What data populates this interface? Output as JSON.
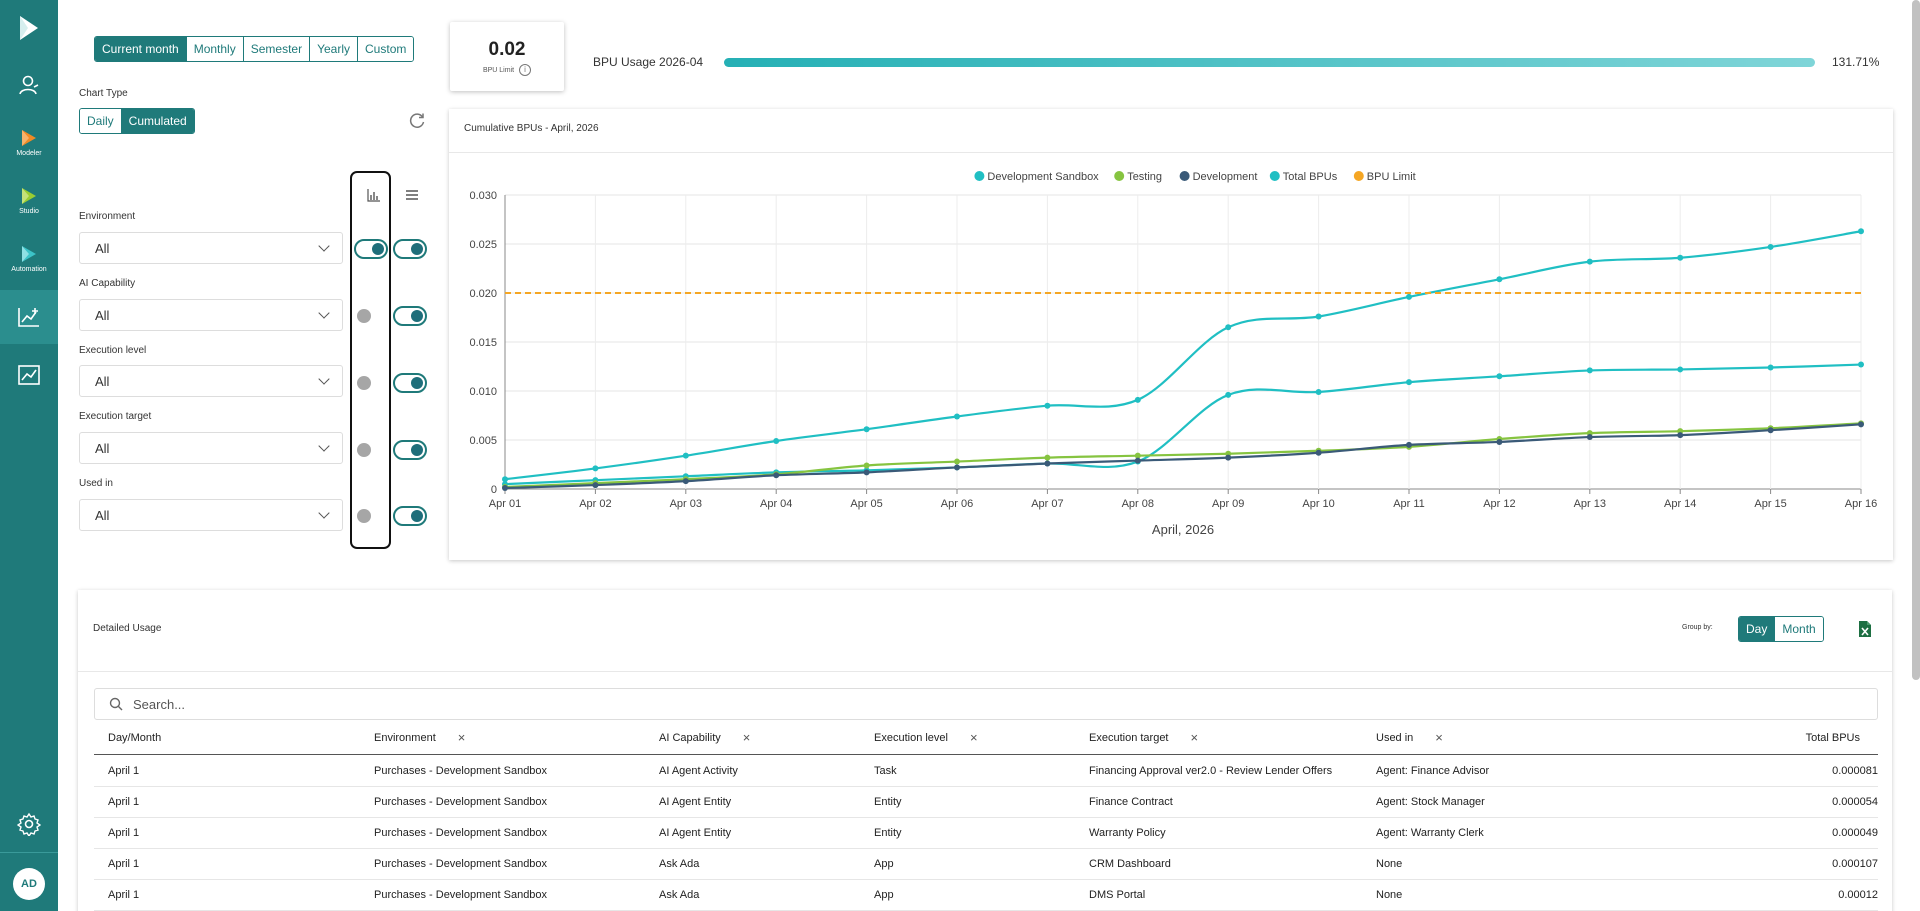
{
  "period_options": [
    {
      "label": "Current month",
      "active": true
    },
    {
      "label": "Monthly",
      "active": false
    },
    {
      "label": "Semester",
      "active": false
    },
    {
      "label": "Yearly",
      "active": false
    },
    {
      "label": "Custom",
      "active": false
    }
  ],
  "chart_type": {
    "label": "Chart Type",
    "options": [
      {
        "label": "Daily",
        "active": false
      },
      {
        "label": "Cumulated",
        "active": true
      }
    ]
  },
  "filters": [
    {
      "label": "Environment",
      "value": "All",
      "chart_toggle": true,
      "table_toggle": true
    },
    {
      "label": "AI Capability",
      "value": "All",
      "chart_toggle": false,
      "table_toggle": true
    },
    {
      "label": "Execution level",
      "value": "All",
      "chart_toggle": false,
      "table_toggle": true
    },
    {
      "label": "Execution target",
      "value": "All",
      "chart_toggle": false,
      "table_toggle": true
    },
    {
      "label": "Used in",
      "value": "All",
      "chart_toggle": false,
      "table_toggle": true
    }
  ],
  "limit_card": {
    "value": "0.02",
    "label": "BPU Limit",
    "info": "i"
  },
  "usage": {
    "label": "BPU Usage 2026-04",
    "percent_text": "131.71%",
    "fill": 1.0
  },
  "sidebar": {
    "items": [
      {
        "name": "users",
        "label": ""
      },
      {
        "name": "modeler",
        "label": "Modeler"
      },
      {
        "name": "studio",
        "label": "Studio"
      },
      {
        "name": "automation",
        "label": "Automation"
      }
    ],
    "avatar": "AD"
  },
  "chart_data": {
    "type": "line",
    "title": "Cumulative BPUs - April, 2026",
    "xlabel": "April, 2026",
    "ylabel": "",
    "categories": [
      "Apr 01",
      "Apr 02",
      "Apr 03",
      "Apr 04",
      "Apr 05",
      "Apr 06",
      "Apr 07",
      "Apr 08",
      "Apr 09",
      "Apr 10",
      "Apr 11",
      "Apr 12",
      "Apr 13",
      "Apr 14",
      "Apr 15",
      "Apr 16"
    ],
    "ylim": [
      0,
      0.03
    ],
    "yticks": [
      "0",
      "0.005",
      "0.010",
      "0.015",
      "0.020",
      "0.025",
      "0.030"
    ],
    "yticks_values": [
      0,
      0.005,
      0.01,
      0.015,
      0.02,
      0.025,
      0.03
    ],
    "legend_position": "top-center",
    "grid": true,
    "series": [
      {
        "name": "Development Sandbox",
        "color": "#20bfc3",
        "values": [
          0.0005,
          0.0009,
          0.0013,
          0.0017,
          0.0019,
          0.0022,
          0.0026,
          0.0028,
          0.0096,
          0.0099,
          0.0109,
          0.0115,
          0.0121,
          0.0122,
          0.0124,
          0.0127
        ]
      },
      {
        "name": "Testing",
        "color": "#86c440",
        "values": [
          0.0002,
          0.0006,
          0.001,
          0.0015,
          0.0024,
          0.0028,
          0.0032,
          0.0034,
          0.0036,
          0.0039,
          0.0043,
          0.0051,
          0.0057,
          0.0059,
          0.0062,
          0.0067
        ]
      },
      {
        "name": "Development",
        "color": "#3a5a78",
        "values": [
          0.0001,
          0.0004,
          0.0008,
          0.0014,
          0.0017,
          0.0022,
          0.0026,
          0.0029,
          0.0032,
          0.0037,
          0.0045,
          0.0048,
          0.0053,
          0.0055,
          0.006,
          0.0066
        ]
      },
      {
        "name": "Total BPUs",
        "color": "#20bfc3",
        "values": [
          0.001,
          0.0021,
          0.0034,
          0.0049,
          0.0061,
          0.0074,
          0.0085,
          0.0091,
          0.0165,
          0.0176,
          0.0196,
          0.0214,
          0.0232,
          0.0236,
          0.0247,
          0.0263
        ]
      },
      {
        "name": "BPU Limit",
        "color": "#f5a623",
        "dashed": true,
        "values": [
          0.02,
          0.02,
          0.02,
          0.02,
          0.02,
          0.02,
          0.02,
          0.02,
          0.02,
          0.02,
          0.02,
          0.02,
          0.02,
          0.02,
          0.02,
          0.02
        ]
      }
    ]
  },
  "table": {
    "title": "Detailed Usage",
    "group_by_label": "Group by:",
    "group_by_options": [
      {
        "label": "Day",
        "active": true
      },
      {
        "label": "Month",
        "active": false
      }
    ],
    "search_placeholder": "Search...",
    "columns": [
      {
        "label": "Day/Month",
        "removable": false
      },
      {
        "label": "Environment",
        "removable": true
      },
      {
        "label": "AI Capability",
        "removable": true
      },
      {
        "label": "Execution level",
        "removable": true
      },
      {
        "label": "Execution target",
        "removable": true
      },
      {
        "label": "Used in",
        "removable": true
      },
      {
        "label": "Total BPUs",
        "removable": false
      }
    ],
    "remove_symbol": "×",
    "rows": [
      [
        "April 1",
        "Purchases - Development Sandbox",
        "AI Agent Activity",
        "Task",
        "Financing Approval ver2.0 - Review Lender Offers",
        "Agent: Finance Advisor",
        "0.000081"
      ],
      [
        "April 1",
        "Purchases - Development Sandbox",
        "AI Agent Entity",
        "Entity",
        "Finance Contract",
        "Agent: Stock Manager",
        "0.000054"
      ],
      [
        "April 1",
        "Purchases - Development Sandbox",
        "AI Agent Entity",
        "Entity",
        "Warranty Policy",
        "Agent: Warranty Clerk",
        "0.000049"
      ],
      [
        "April 1",
        "Purchases - Development Sandbox",
        "Ask Ada",
        "App",
        "CRM Dashboard",
        "None",
        "0.000107"
      ],
      [
        "April 1",
        "Purchases - Development Sandbox",
        "Ask Ada",
        "App",
        "DMS Portal",
        "None",
        "0.00012"
      ]
    ]
  }
}
